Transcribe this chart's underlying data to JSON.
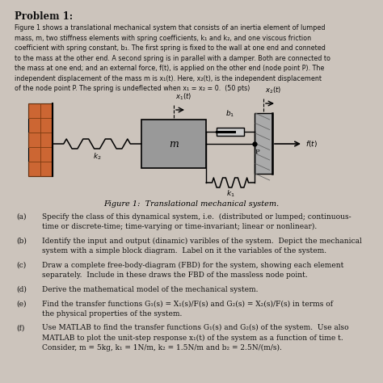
{
  "title": "Problem 1:",
  "figure_caption": "Figure 1:  Translational mechanical system.",
  "bg_color": "#ccc4bc",
  "text_color": "#111111",
  "wall_orange": "#cc6633",
  "wall_dark": "#7a3a10",
  "mass_color": "#aaaaaa",
  "damper_fill": "#cccccc",
  "body_lines": [
    "Figure 1 shows a translational mechanical system that consists of an inertia element of lumped",
    "mass, m, two stiffness elements with spring coefficients, k₁ and k₂, and one viscous friction",
    "coefficient with spring constant, b₁. The first spring is fixed to the wall at one end and conneted",
    "to the mass at the other end. A second spring is in parallel with a damper. Both are connected to",
    "the mass at one end; and an external force, f(t), is applied on the other end (node point P). The",
    "independent displacement of the mass m is x₁(t). Here, x₂(t), is the independent displacement",
    "of the node point P. The spring is undeflected when x₁ = x₂ = 0.  (50 pts)"
  ],
  "questions": [
    {
      "label": "(a)",
      "text": "Specify the class of this dynamical system, i.e.  (distributed or lumped; continuous-\ntime or discrete-time; time-varying or time-invariant; linear or nonlinear)."
    },
    {
      "label": "(b)",
      "text": "Identify the input and output (dinamic) varibles of the system.  Depict the mechanical\nsystem with a simple block diagram.  Label on it the variables of the system."
    },
    {
      "label": "(c)",
      "text": "Draw a complete free-body-diagram (FBD) for the system, showing each element\nseparately.  Include in these draws the FBD of the massless node point."
    },
    {
      "label": "(d)",
      "text": "Derive the mathematical model of the mechanical system."
    },
    {
      "label": "(e)",
      "text": "Find the transfer functions G₁(s) = X₁(s)/F(s) and G₂(s) = X₂(s)/F(s) in terms of\nthe physical properties of the system."
    },
    {
      "label": "(f)",
      "text": "Use MATLAB to find the transfer functions G₁(s) and G₂(s) of the system.  Use also\nMATLAB to plot the unit-step response x₁(t) of the system as a function of time t.\nConsider, m = 5kg, k₁ = 1N/m, k₂ = 1.5N/m and b₂ = 2.5N/(m/s)."
    }
  ]
}
